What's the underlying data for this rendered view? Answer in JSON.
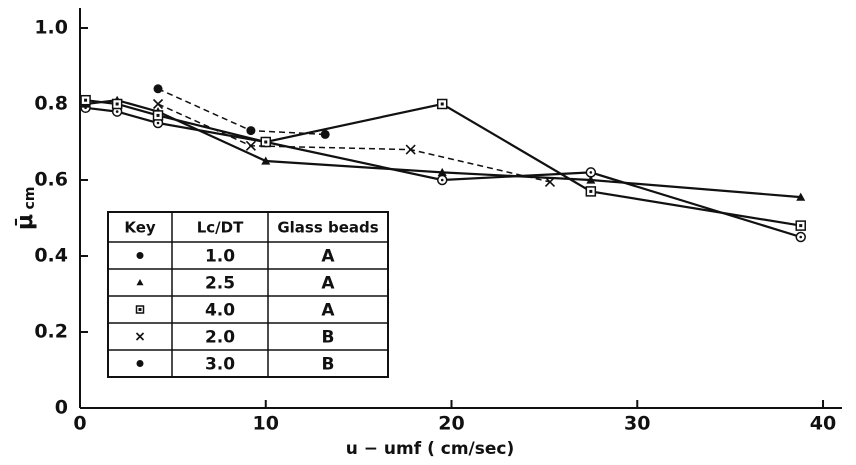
{
  "chart_data": {
    "type": "line",
    "x_label": "u − umf  ( cm/sec)",
    "y_label": "μ̄",
    "y_label_sub": "cm",
    "xlim": [
      0,
      41
    ],
    "xticks": [
      0,
      10,
      20,
      30,
      40
    ],
    "ylim": [
      0,
      1.05
    ],
    "yticks": [
      0,
      0.2,
      0.4,
      0.6,
      0.8,
      {
        "value": 1,
        "label": "1.0"
      }
    ],
    "legend_headers": [
      "Key",
      "Lc/DT",
      "Glass beads"
    ],
    "series": [
      {
        "name": "1.0",
        "beads": "A",
        "marker": "circle-open",
        "dashed": false,
        "x": [
          0.3,
          2,
          4.2,
          10,
          19.5,
          27.5,
          38.8
        ],
        "values": [
          0.79,
          0.78,
          0.75,
          0.7,
          0.6,
          0.62,
          0.45
        ]
      },
      {
        "name": "2.5",
        "beads": "A",
        "marker": "triangle",
        "dashed": false,
        "x": [
          0.3,
          2,
          4.2,
          10,
          19.5,
          27.5,
          38.8
        ],
        "values": [
          0.8,
          0.81,
          0.78,
          0.65,
          0.62,
          0.6,
          0.555
        ]
      },
      {
        "name": "4.0",
        "beads": "A",
        "marker": "square",
        "dashed": false,
        "x": [
          0.3,
          2,
          4.2,
          10,
          19.5,
          27.5,
          38.8
        ],
        "values": [
          0.81,
          0.8,
          0.77,
          0.7,
          0.8,
          0.57,
          0.48
        ]
      },
      {
        "name": "2.0",
        "beads": "B",
        "marker": "cross",
        "dashed": true,
        "x": [
          4.2,
          9.2,
          17.8,
          25.3
        ],
        "values": [
          0.8,
          0.69,
          0.68,
          0.595
        ]
      },
      {
        "name": "3.0",
        "beads": "B",
        "marker": "circle-filled",
        "dashed": true,
        "x": [
          4.2,
          9.2,
          13.2
        ],
        "values": [
          0.84,
          0.73,
          0.72
        ]
      }
    ]
  }
}
